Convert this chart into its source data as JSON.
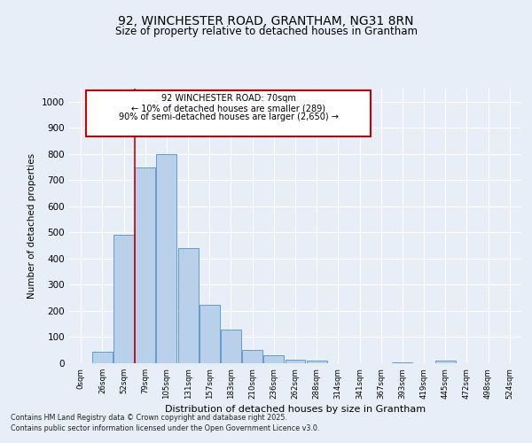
{
  "title": "92, WINCHESTER ROAD, GRANTHAM, NG31 8RN",
  "subtitle": "Size of property relative to detached houses in Grantham",
  "xlabel": "Distribution of detached houses by size in Grantham",
  "ylabel": "Number of detached properties",
  "bar_labels": [
    "0sqm",
    "26sqm",
    "52sqm",
    "79sqm",
    "105sqm",
    "131sqm",
    "157sqm",
    "183sqm",
    "210sqm",
    "236sqm",
    "262sqm",
    "288sqm",
    "314sqm",
    "341sqm",
    "367sqm",
    "393sqm",
    "419sqm",
    "445sqm",
    "472sqm",
    "498sqm",
    "524sqm"
  ],
  "bar_values": [
    0,
    45,
    490,
    750,
    800,
    440,
    225,
    128,
    52,
    30,
    15,
    10,
    0,
    0,
    0,
    5,
    0,
    10,
    0,
    0,
    0
  ],
  "bar_color": "#b8d0ea",
  "bar_edge_color": "#6699cc",
  "bg_color": "#e8eef8",
  "grid_color": "#ffffff",
  "annotation_box_color": "#cc0000",
  "annotation_text_line1": "92 WINCHESTER ROAD: 70sqm",
  "annotation_text_line2": "← 10% of detached houses are smaller (289)",
  "annotation_text_line3": "90% of semi-detached houses are larger (2,650) →",
  "vline_x_index": 3.0,
  "ylim": [
    0,
    1050
  ],
  "yticks": [
    0,
    100,
    200,
    300,
    400,
    500,
    600,
    700,
    800,
    900,
    1000
  ],
  "footer_line1": "Contains HM Land Registry data © Crown copyright and database right 2025.",
  "footer_line2": "Contains public sector information licensed under the Open Government Licence v3.0."
}
